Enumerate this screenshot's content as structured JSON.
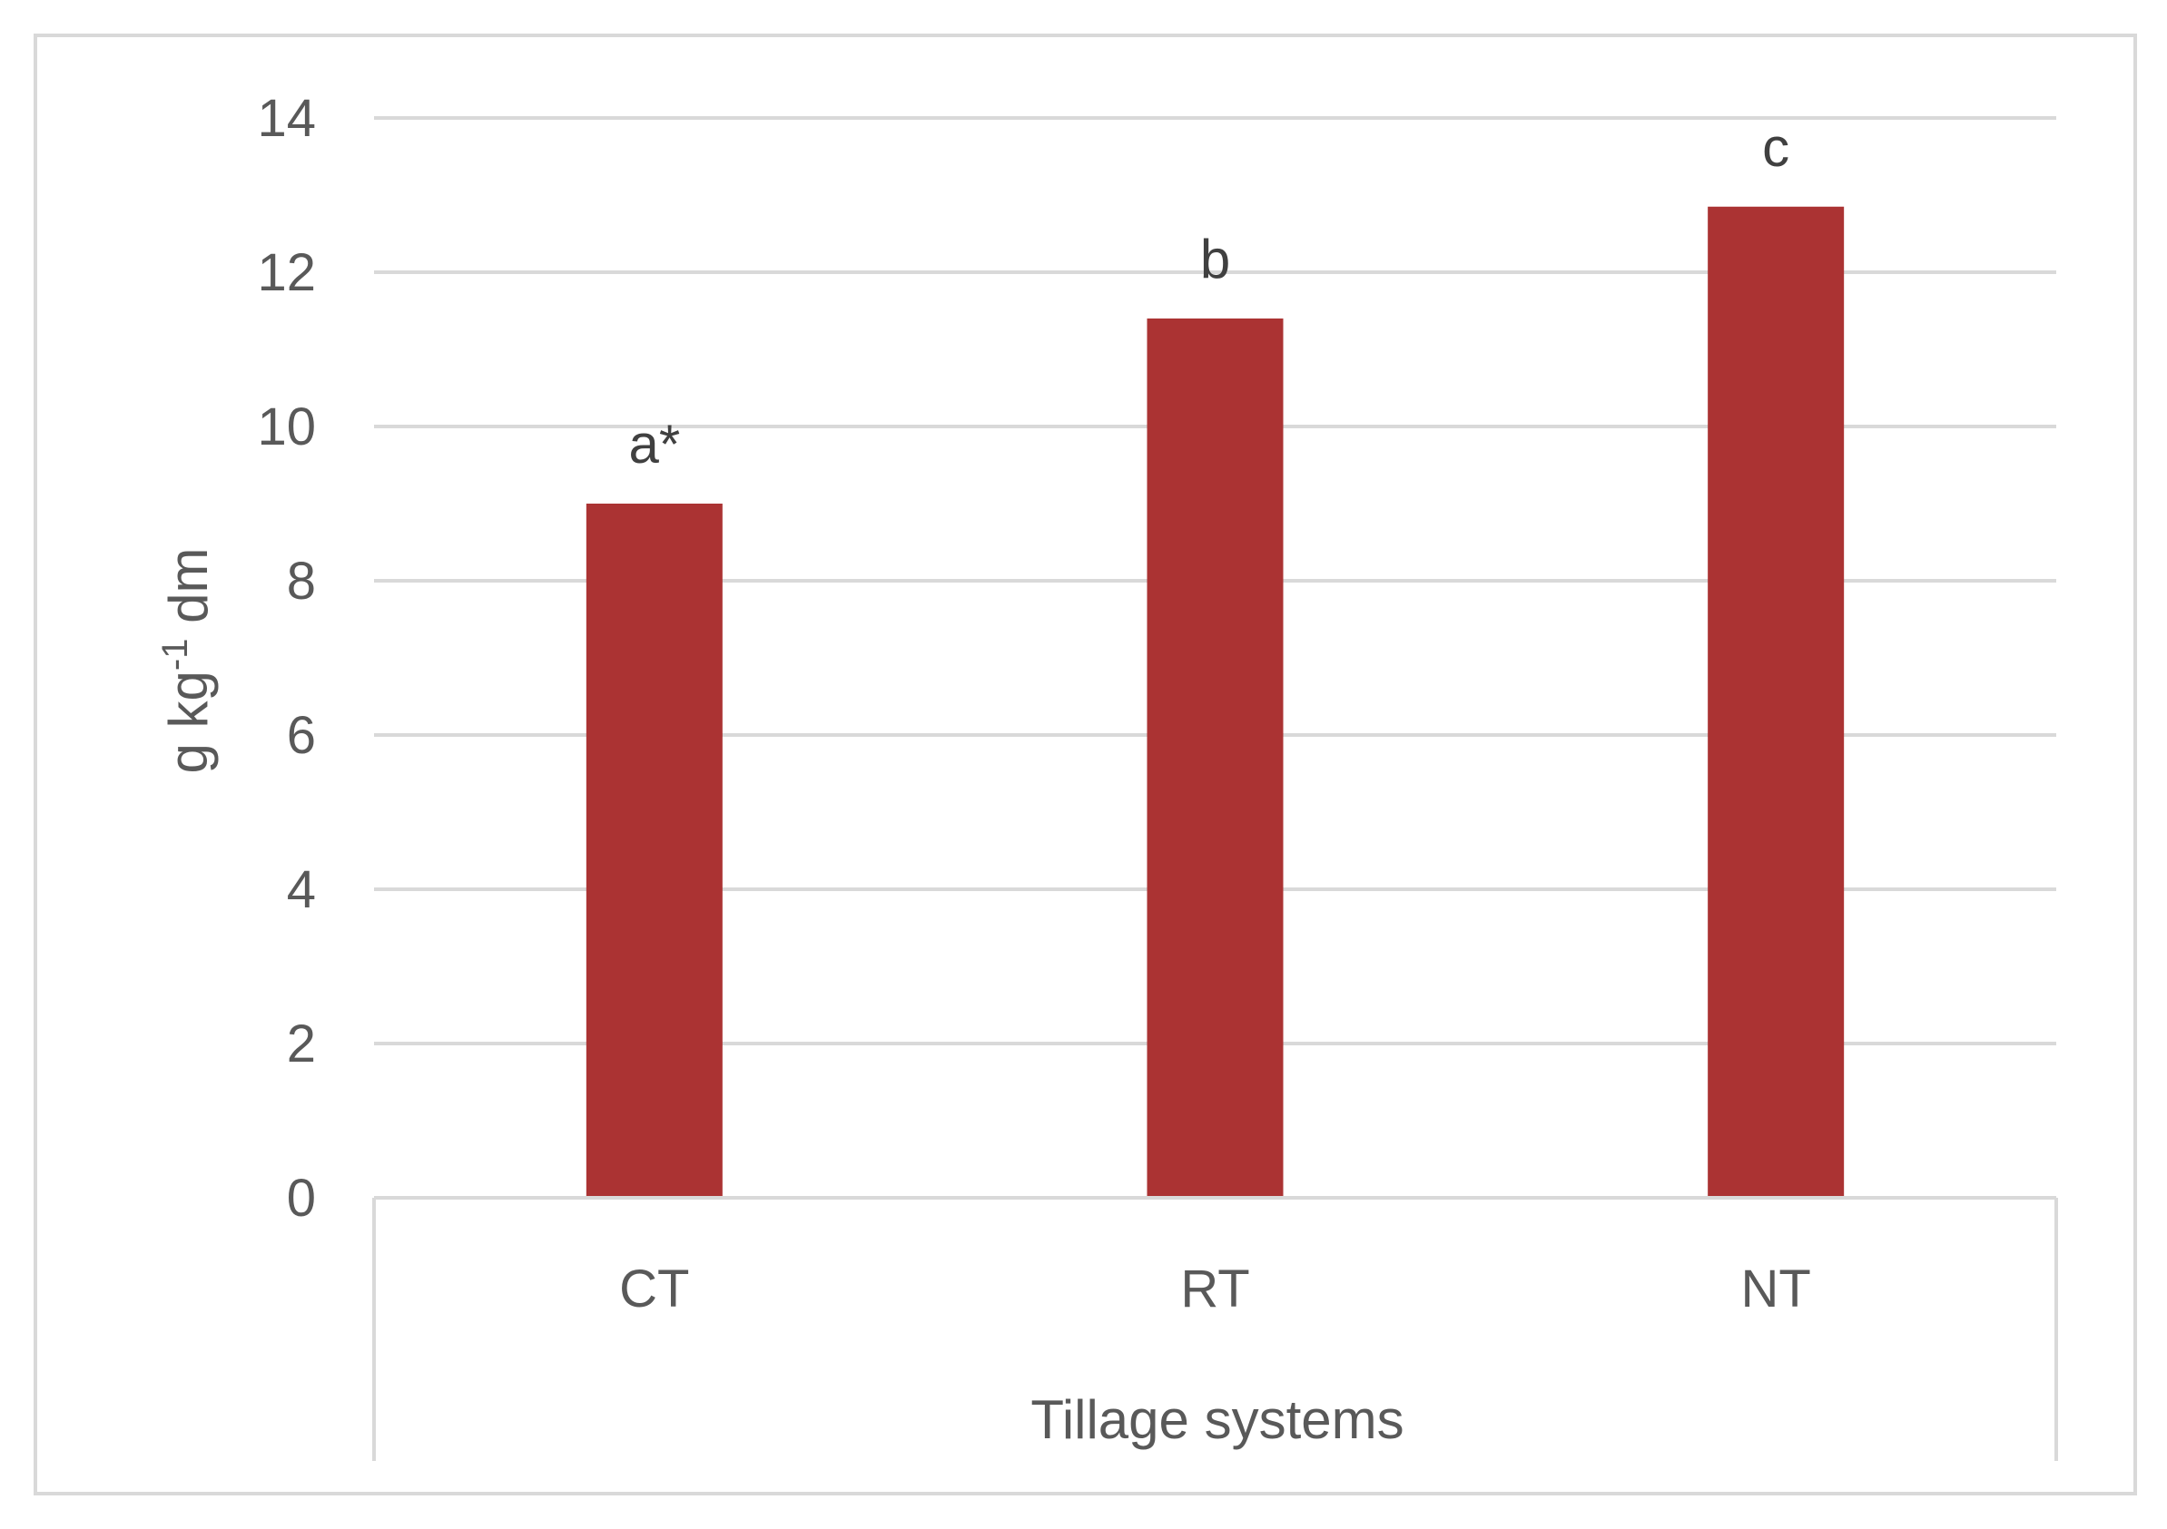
{
  "chart_data": {
    "type": "bar",
    "categories": [
      "CT",
      "RT",
      "NT"
    ],
    "values": [
      9.0,
      11.4,
      12.85
    ],
    "data_labels": [
      "a*",
      "b",
      "c"
    ],
    "title": "",
    "xlabel": "Tillage systems",
    "ylabel": {
      "base": "g kg",
      "sup": "-1",
      "tail": " dm"
    },
    "ylim": [
      0,
      14
    ],
    "yticks": [
      0,
      2,
      4,
      6,
      8,
      10,
      12,
      14
    ],
    "grid": true,
    "legend": "none",
    "colors": {
      "bar": "#ab3333",
      "grid": "#d9d9d9",
      "text": "#595959"
    }
  }
}
